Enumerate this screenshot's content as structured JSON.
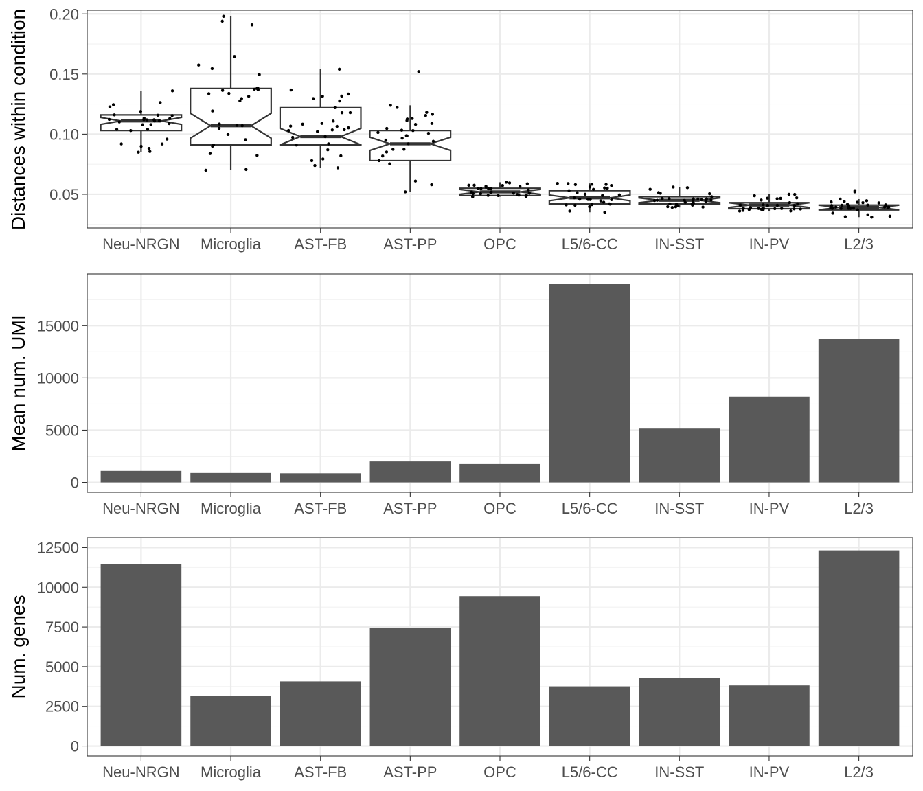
{
  "colors": {
    "bar": "#595959",
    "panel_border": "#333333",
    "grid_major": "#ebebeb",
    "grid_minor": "#f2f2f2",
    "box_line": "#333333",
    "point": "#000000",
    "tick_text": "#4d4d4d"
  },
  "chart_data": [
    {
      "type": "box",
      "title": "",
      "xlabel": "",
      "ylabel": "Distances within condition",
      "categories": [
        "Neu-NRGN",
        "Microglia",
        "AST-FB",
        "AST-PP",
        "OPC",
        "L5/6-CC",
        "IN-SST",
        "IN-PV",
        "L2/3"
      ],
      "ylim": [
        0.022,
        0.203
      ],
      "yticks": [
        0.05,
        0.1,
        0.15,
        0.2
      ],
      "ytick_labels": [
        "0.05",
        "0.10",
        "0.15",
        "0.20"
      ],
      "grid": true,
      "notched": true,
      "boxes": [
        {
          "category": "Neu-NRGN",
          "min": 0.085,
          "q1": 0.103,
          "median": 0.111,
          "q3": 0.116,
          "max": 0.136
        },
        {
          "category": "Microglia",
          "min": 0.07,
          "q1": 0.091,
          "median": 0.107,
          "q3": 0.138,
          "max": 0.198
        },
        {
          "category": "AST-FB",
          "min": 0.072,
          "q1": 0.091,
          "median": 0.098,
          "q3": 0.122,
          "max": 0.154
        },
        {
          "category": "AST-PP",
          "min": 0.052,
          "q1": 0.078,
          "median": 0.092,
          "q3": 0.103,
          "max": 0.124
        },
        {
          "category": "OPC",
          "min": 0.048,
          "q1": 0.049,
          "median": 0.052,
          "q3": 0.055,
          "max": 0.06
        },
        {
          "category": "L5/6-CC",
          "min": 0.035,
          "q1": 0.042,
          "median": 0.047,
          "q3": 0.053,
          "max": 0.059
        },
        {
          "category": "IN-SST",
          "min": 0.039,
          "q1": 0.042,
          "median": 0.045,
          "q3": 0.048,
          "max": 0.056
        },
        {
          "category": "IN-PV",
          "min": 0.036,
          "q1": 0.038,
          "median": 0.041,
          "q3": 0.043,
          "max": 0.05
        },
        {
          "category": "L2/3",
          "min": 0.031,
          "q1": 0.037,
          "median": 0.039,
          "q3": 0.041,
          "max": 0.046
        }
      ],
      "outliers": [
        {
          "category": "AST-PP",
          "value": 0.152
        },
        {
          "category": "L2/3",
          "value": 0.052
        },
        {
          "category": "L2/3",
          "value": 0.053
        }
      ]
    },
    {
      "type": "bar",
      "title": "",
      "xlabel": "",
      "ylabel": "Mean num. UMI",
      "categories": [
        "Neu-NRGN",
        "Microglia",
        "AST-FB",
        "AST-PP",
        "OPC",
        "L5/6-CC",
        "IN-SST",
        "IN-PV",
        "L2/3"
      ],
      "values": [
        1100,
        900,
        870,
        2000,
        1750,
        19000,
        5150,
        8200,
        13750
      ],
      "ylim": [
        0,
        19000
      ],
      "yticks": [
        0,
        5000,
        10000,
        15000
      ],
      "ytick_labels": [
        "0",
        "5000",
        "10000",
        "15000"
      ],
      "grid": true
    },
    {
      "type": "bar",
      "title": "",
      "xlabel": "",
      "ylabel": "Num. genes",
      "categories": [
        "Neu-NRGN",
        "Microglia",
        "AST-FB",
        "AST-PP",
        "OPC",
        "L5/6-CC",
        "IN-SST",
        "IN-PV",
        "L2/3"
      ],
      "values": [
        11480,
        3170,
        4070,
        7440,
        9440,
        3760,
        4270,
        3820,
        12320
      ],
      "ylim": [
        0,
        12500
      ],
      "yticks": [
        0,
        2500,
        5000,
        7500,
        10000,
        12500
      ],
      "ytick_labels": [
        "0",
        "2500",
        "5000",
        "7500",
        "10000",
        "12500"
      ],
      "grid": true
    }
  ]
}
